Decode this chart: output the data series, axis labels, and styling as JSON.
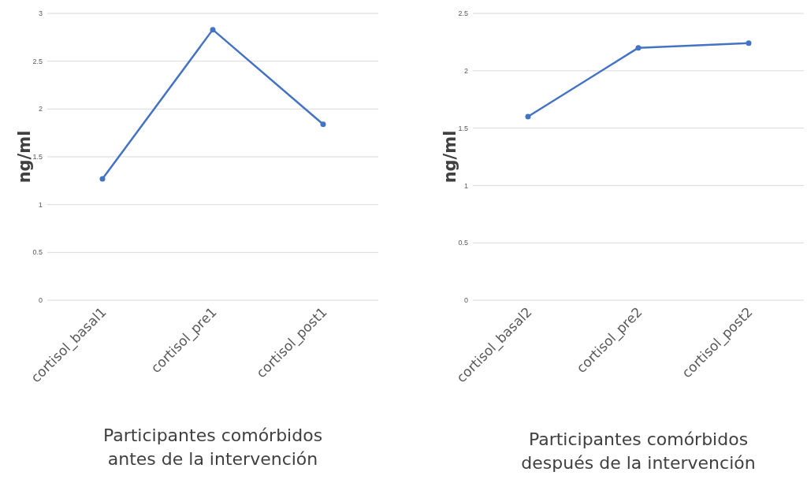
{
  "chart_data": [
    {
      "type": "line",
      "xlabel": "Participantes comórbidos\nantes de la intervención",
      "ylabel": "ng/ml",
      "categories": [
        "cortisol_basal1",
        "cortisol_pre1",
        "cortisol_post1"
      ],
      "series": [
        {
          "color": "#4472c4",
          "values": [
            1.27,
            2.83,
            1.84
          ]
        }
      ],
      "ylim": [
        0,
        3
      ],
      "yticks": [
        0,
        0.5,
        1,
        1.5,
        2,
        2.5,
        3
      ],
      "grid": "y",
      "marker": "circle",
      "line_style": "solid"
    },
    {
      "type": "line",
      "xlabel": "Participantes comórbidos\ndespués de la intervención",
      "ylabel": "ng/ml",
      "categories": [
        "cortisol_basal2",
        "cortisol_pre2",
        "cortisol_post2"
      ],
      "series": [
        {
          "color": "#4472c4",
          "values": [
            1.6,
            2.2,
            2.24
          ]
        }
      ],
      "ylim": [
        0,
        2.5
      ],
      "yticks": [
        0,
        0.5,
        1,
        1.5,
        2,
        2.5
      ],
      "grid": "y",
      "marker": "circle",
      "line_style": "solid"
    }
  ]
}
